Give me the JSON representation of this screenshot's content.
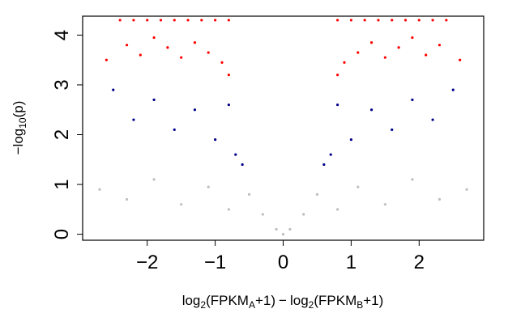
{
  "chart_data": {
    "type": "scatter",
    "title": "",
    "xlabel": "log2(FPKM_A + 1) − log2(FPKM_B + 1)",
    "ylabel": "−log10(p)",
    "xlim": [
      -2.95,
      2.95
    ],
    "ylim": [
      -0.12,
      4.38
    ],
    "grid": false,
    "legend": "none",
    "x_ticks": [
      -2,
      -1,
      0,
      1,
      2
    ],
    "y_ticks": [
      0,
      1,
      2,
      3,
      4
    ],
    "x_tick_labels": [
      "−2",
      "−1",
      "0",
      "1",
      "2"
    ],
    "y_tick_labels": [
      "0",
      "1",
      "2",
      "3",
      "4"
    ],
    "xlabel_parts": {
      "left_prefix": "log",
      "left_base": "2",
      "left_open": "(FPKM",
      "left_sub": "A",
      "left_close": "+1)",
      "minus": "−",
      "right_prefix": "log",
      "right_base": "2",
      "right_open": "(FPKM",
      "right_sub": "B",
      "right_close": "+1)"
    },
    "ylabel_parts": {
      "prefix": "−log",
      "base": "10",
      "suffix": "(p)"
    },
    "series_colors": {
      "not_significant": "#bebebe",
      "significant": "#00008b",
      "highly_significant": "#ff0000"
    },
    "thresholds": {
      "p_significance": 1.3,
      "p_high": 3.0,
      "cap": 4.3
    },
    "series": [
      {
        "key": "highly_significant",
        "color": "#ff0000",
        "points": [
          [
            -2.4,
            4.3
          ],
          [
            -2.2,
            4.3
          ],
          [
            -2.0,
            4.3
          ],
          [
            -1.8,
            4.3
          ],
          [
            -1.6,
            4.3
          ],
          [
            -1.4,
            4.3
          ],
          [
            -1.2,
            4.3
          ],
          [
            -1.0,
            4.3
          ],
          [
            -0.8,
            4.3
          ],
          [
            0.8,
            4.3
          ],
          [
            1.0,
            4.3
          ],
          [
            1.2,
            4.3
          ],
          [
            1.4,
            4.3
          ],
          [
            1.6,
            4.3
          ],
          [
            1.8,
            4.3
          ],
          [
            2.0,
            4.3
          ],
          [
            2.2,
            4.3
          ],
          [
            2.4,
            4.3
          ],
          [
            -2.6,
            3.5
          ],
          [
            -2.3,
            3.8
          ],
          [
            -2.1,
            3.6
          ],
          [
            -1.9,
            3.95
          ],
          [
            -1.7,
            3.75
          ],
          [
            -1.5,
            3.55
          ],
          [
            -1.3,
            3.85
          ],
          [
            -1.1,
            3.65
          ],
          [
            -0.9,
            3.45
          ],
          [
            -0.8,
            3.2
          ],
          [
            2.6,
            3.5
          ],
          [
            2.3,
            3.8
          ],
          [
            2.1,
            3.6
          ],
          [
            1.9,
            3.95
          ],
          [
            1.7,
            3.75
          ],
          [
            1.5,
            3.55
          ],
          [
            1.3,
            3.85
          ],
          [
            1.1,
            3.65
          ],
          [
            0.9,
            3.45
          ],
          [
            0.8,
            3.2
          ]
        ]
      },
      {
        "key": "significant",
        "color": "#00008b",
        "points": [
          [
            -2.5,
            2.9
          ],
          [
            -2.2,
            2.3
          ],
          [
            -1.9,
            2.7
          ],
          [
            -1.6,
            2.1
          ],
          [
            -1.3,
            2.5
          ],
          [
            -1.0,
            1.9
          ],
          [
            -0.8,
            2.6
          ],
          [
            -0.7,
            1.6
          ],
          [
            -0.6,
            1.4
          ],
          [
            2.5,
            2.9
          ],
          [
            2.2,
            2.3
          ],
          [
            1.9,
            2.7
          ],
          [
            1.6,
            2.1
          ],
          [
            1.3,
            2.5
          ],
          [
            1.0,
            1.9
          ],
          [
            0.8,
            2.6
          ],
          [
            0.7,
            1.6
          ],
          [
            0.6,
            1.4
          ]
        ]
      },
      {
        "key": "not_significant",
        "color": "#bebebe",
        "points": [
          [
            -2.7,
            0.9
          ],
          [
            -2.3,
            0.7
          ],
          [
            -1.9,
            1.1
          ],
          [
            -1.5,
            0.6
          ],
          [
            -1.1,
            0.95
          ],
          [
            -0.8,
            0.5
          ],
          [
            -0.5,
            0.8
          ],
          [
            -0.3,
            0.4
          ],
          [
            -0.1,
            0.1
          ],
          [
            0.0,
            0.0
          ],
          [
            0.1,
            0.1
          ],
          [
            0.3,
            0.4
          ],
          [
            0.5,
            0.8
          ],
          [
            0.8,
            0.5
          ],
          [
            1.1,
            0.95
          ],
          [
            1.5,
            0.6
          ],
          [
            1.9,
            1.1
          ],
          [
            2.3,
            0.7
          ],
          [
            2.7,
            0.9
          ]
        ]
      }
    ]
  }
}
